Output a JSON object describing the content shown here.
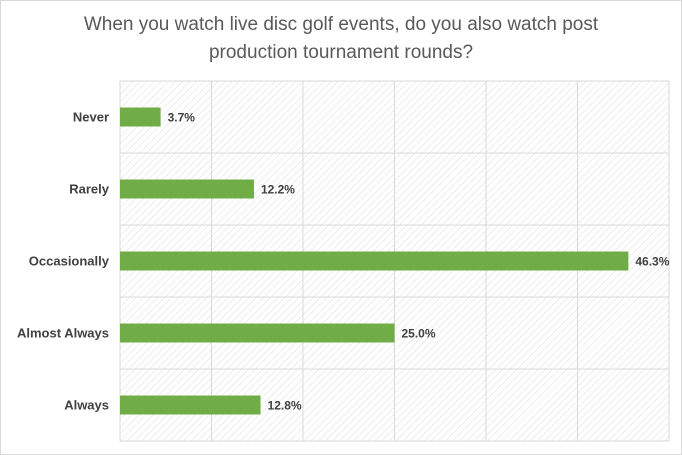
{
  "chart_data": {
    "type": "bar",
    "orientation": "horizontal",
    "title_lines": [
      "When you watch live disc golf events, do you also watch post",
      "production tournament rounds?"
    ],
    "categories": [
      "Never",
      "Rarely",
      "Occasionally",
      "Almost Always",
      "Always"
    ],
    "values": [
      3.7,
      12.2,
      46.3,
      25.0,
      12.8
    ],
    "value_labels": [
      "3.7%",
      "12.2%",
      "46.3%",
      "25.0%",
      "12.8%"
    ],
    "unit": "%",
    "xlim": [
      0,
      50
    ],
    "grid": true,
    "legend": "none",
    "bar_color": "#70ad47"
  }
}
